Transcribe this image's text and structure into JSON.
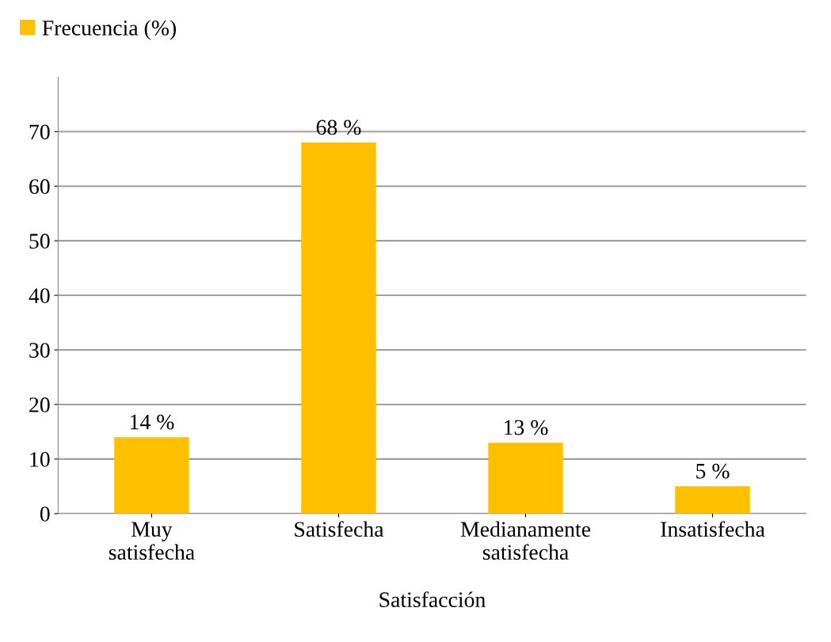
{
  "chart_data": {
    "type": "bar",
    "xlabel": "Satisfacción",
    "categories": [
      "Muy\nsatisfecha",
      "Satisfecha",
      "Medianamente\nsatisfecha",
      "Insatisfecha"
    ],
    "series": [
      {
        "name": "Frecuencia (%)",
        "color": "#ffc000",
        "values": [
          14,
          68,
          13,
          5
        ],
        "value_labels": [
          "14 %",
          "68 %",
          "13 %",
          "5 %"
        ]
      }
    ],
    "ylim": [
      0,
      80
    ],
    "yticks": [
      0,
      10,
      20,
      30,
      40,
      50,
      60,
      70
    ],
    "grid": "y",
    "legend": "top left"
  }
}
